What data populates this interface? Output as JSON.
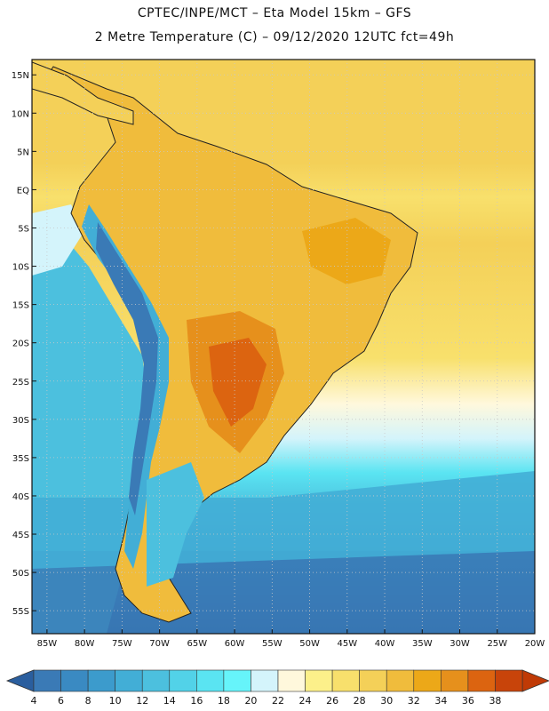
{
  "header": {
    "line1": "CPTEC/INPE/MCT –  Eta Model 15km – GFS",
    "line2": "2 Metre Temperature (C) – 09/12/2020 12UTC fct=49h"
  },
  "map": {
    "lat_labels": [
      "15N",
      "10N",
      "5N",
      "EQ",
      "5S",
      "10S",
      "15S",
      "20S",
      "25S",
      "30S",
      "35S",
      "40S",
      "45S",
      "50S",
      "55S"
    ],
    "lon_labels": [
      "85W",
      "80W",
      "75W",
      "70W",
      "65W",
      "60W",
      "55W",
      "50W",
      "45W",
      "40W",
      "35W",
      "30W",
      "25W",
      "20W"
    ],
    "lat_values": [
      15,
      10,
      5,
      0,
      -5,
      -10,
      -15,
      -20,
      -25,
      -30,
      -35,
      -40,
      -45,
      -50,
      -55
    ],
    "lon_values": [
      -85,
      -80,
      -75,
      -70,
      -65,
      -60,
      -55,
      -50,
      -45,
      -40,
      -35,
      -30,
      -25,
      -20
    ]
  },
  "colorbar": {
    "labels": [
      "4",
      "6",
      "8",
      "10",
      "12",
      "14",
      "16",
      "18",
      "20",
      "22",
      "24",
      "26",
      "28",
      "30",
      "32",
      "34",
      "36",
      "38"
    ],
    "colors": [
      "#3a7ab6",
      "#3a8ac2",
      "#3c9bcc",
      "#42aed6",
      "#4cc0de",
      "#52d2e8",
      "#5ae4f2",
      "#66f4fa",
      "#d4f4fb",
      "#fff8dc",
      "#fcf08a",
      "#f8e06c",
      "#f4d058",
      "#f0bc3c",
      "#eca818",
      "#e6901c",
      "#dc6410",
      "#c8440a"
    ],
    "low_color": "#2a5e9e",
    "high_color": "#c03a06"
  }
}
